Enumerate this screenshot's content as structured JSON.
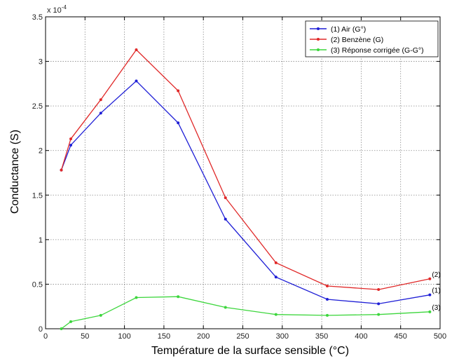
{
  "chart_data": {
    "type": "line",
    "xlabel": "Température de la surface sensible (°C)",
    "ylabel": "Conductance (S)",
    "y_multiplier": "x 10",
    "y_exponent": "-4",
    "xlim": [
      0,
      500
    ],
    "ylim": [
      0,
      3.5
    ],
    "xticks": [
      0,
      50,
      100,
      150,
      200,
      250,
      300,
      350,
      400,
      450,
      500
    ],
    "yticks": [
      0,
      0.5,
      1,
      1.5,
      2,
      2.5,
      3,
      3.5
    ],
    "grid": true,
    "legend_position": "top-right",
    "series": [
      {
        "name": "(1) Air (G°)",
        "end_label": "(1)",
        "color": "#1f1fd6",
        "x": [
          20,
          32,
          70,
          115,
          168,
          228,
          292,
          357,
          422,
          487
        ],
        "y": [
          1.78,
          2.06,
          2.42,
          2.78,
          2.31,
          1.23,
          0.58,
          0.33,
          0.28,
          0.38
        ]
      },
      {
        "name": "(2) Benzène (G)",
        "end_label": "(2)",
        "color": "#e02828",
        "x": [
          20,
          32,
          70,
          115,
          168,
          228,
          292,
          357,
          422,
          487
        ],
        "y": [
          1.78,
          2.13,
          2.57,
          3.13,
          2.67,
          1.47,
          0.74,
          0.48,
          0.44,
          0.56
        ]
      },
      {
        "name": "(3) Réponse corrigée (G-G°)",
        "end_label": "(3)",
        "color": "#3cd63c",
        "x": [
          20,
          32,
          70,
          115,
          168,
          228,
          292,
          357,
          422,
          487
        ],
        "y": [
          0.0,
          0.08,
          0.15,
          0.35,
          0.36,
          0.24,
          0.16,
          0.15,
          0.16,
          0.19
        ]
      }
    ]
  }
}
